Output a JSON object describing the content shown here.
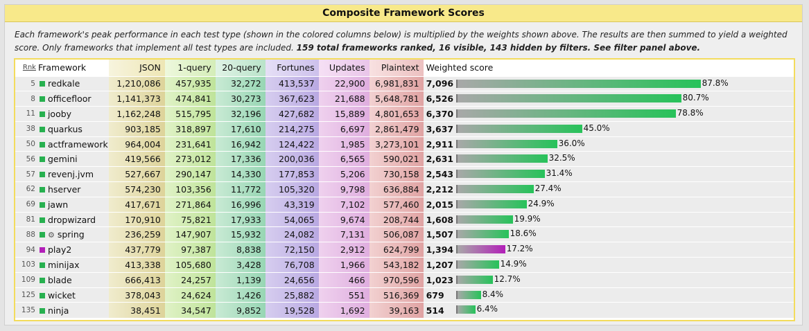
{
  "title": "Composite Framework Scores",
  "description": {
    "italic": "Each framework's peak performance in each test type (shown in the colored columns below) is multiplied by the weights shown above. The results are then summed to yield a weighted score. Only frameworks that implement all test types are included.",
    "bold": "159 total frameworks ranked, 16 visible, 143 hidden by filters. See filter panel above."
  },
  "columns": {
    "rank": "Rnk",
    "framework": "Framework",
    "json": "JSON",
    "q1": "1-query",
    "q20": "20-query",
    "fortunes": "Fortunes",
    "updates": "Updates",
    "plaintext": "Plaintext",
    "weighted": "Weighted score"
  },
  "colors": {
    "bar_green": "#27c25a",
    "bar_purple": "#b21fb8",
    "bar_grey": "#9a9a9a",
    "header": "#f8e98a",
    "border": "#f3dc5c"
  },
  "rows": [
    {
      "rank": "5",
      "name": "redkale",
      "icon": "square",
      "marker": "#27b04f",
      "json": "1,210,086",
      "q1": "457,935",
      "q20": "32,272",
      "fortunes": "413,537",
      "updates": "22,900",
      "plaintext": "6,981,831",
      "score": "7,096",
      "pct": "87.8%",
      "fraction": 0.878,
      "bar": "green"
    },
    {
      "rank": "8",
      "name": "officefloor",
      "icon": "square",
      "marker": "#27b04f",
      "json": "1,141,373",
      "q1": "474,841",
      "q20": "30,273",
      "fortunes": "367,623",
      "updates": "21,688",
      "plaintext": "5,648,781",
      "score": "6,526",
      "pct": "80.7%",
      "fraction": 0.807,
      "bar": "green"
    },
    {
      "rank": "11",
      "name": "jooby",
      "icon": "square",
      "marker": "#27b04f",
      "json": "1,162,248",
      "q1": "515,795",
      "q20": "32,196",
      "fortunes": "427,682",
      "updates": "15,889",
      "plaintext": "4,801,653",
      "score": "6,370",
      "pct": "78.8%",
      "fraction": 0.788,
      "bar": "green"
    },
    {
      "rank": "38",
      "name": "quarkus",
      "icon": "square",
      "marker": "#27b04f",
      "json": "903,185",
      "q1": "318,897",
      "q20": "17,610",
      "fortunes": "214,275",
      "updates": "6,697",
      "plaintext": "2,861,479",
      "score": "3,637",
      "pct": "45.0%",
      "fraction": 0.45,
      "bar": "green"
    },
    {
      "rank": "50",
      "name": "actframework",
      "icon": "square",
      "marker": "#27b04f",
      "json": "964,004",
      "q1": "231,641",
      "q20": "16,942",
      "fortunes": "124,422",
      "updates": "1,985",
      "plaintext": "3,273,101",
      "score": "2,911",
      "pct": "36.0%",
      "fraction": 0.36,
      "bar": "green"
    },
    {
      "rank": "56",
      "name": "gemini",
      "icon": "square",
      "marker": "#27b04f",
      "json": "419,566",
      "q1": "273,012",
      "q20": "17,336",
      "fortunes": "200,036",
      "updates": "6,565",
      "plaintext": "590,021",
      "score": "2,631",
      "pct": "32.5%",
      "fraction": 0.325,
      "bar": "green"
    },
    {
      "rank": "57",
      "name": "revenj.jvm",
      "icon": "square",
      "marker": "#27b04f",
      "json": "527,667",
      "q1": "290,147",
      "q20": "14,330",
      "fortunes": "177,853",
      "updates": "5,206",
      "plaintext": "730,158",
      "score": "2,543",
      "pct": "31.4%",
      "fraction": 0.314,
      "bar": "green"
    },
    {
      "rank": "62",
      "name": "hserver",
      "icon": "square",
      "marker": "#27b04f",
      "json": "574,230",
      "q1": "103,356",
      "q20": "11,772",
      "fortunes": "105,320",
      "updates": "9,798",
      "plaintext": "636,884",
      "score": "2,212",
      "pct": "27.4%",
      "fraction": 0.274,
      "bar": "green"
    },
    {
      "rank": "69",
      "name": "jawn",
      "icon": "square",
      "marker": "#27b04f",
      "json": "417,671",
      "q1": "271,864",
      "q20": "16,996",
      "fortunes": "43,319",
      "updates": "7,102",
      "plaintext": "577,460",
      "score": "2,015",
      "pct": "24.9%",
      "fraction": 0.249,
      "bar": "green"
    },
    {
      "rank": "81",
      "name": "dropwizard",
      "icon": "square",
      "marker": "#27b04f",
      "json": "170,910",
      "q1": "75,821",
      "q20": "17,933",
      "fortunes": "54,065",
      "updates": "9,674",
      "plaintext": "208,744",
      "score": "1,608",
      "pct": "19.9%",
      "fraction": 0.199,
      "bar": "green"
    },
    {
      "rank": "88",
      "name": "spring",
      "icon": "gear",
      "marker": "#27b04f",
      "json": "236,259",
      "q1": "147,907",
      "q20": "15,932",
      "fortunes": "24,082",
      "updates": "7,131",
      "plaintext": "506,087",
      "score": "1,507",
      "pct": "18.6%",
      "fraction": 0.186,
      "bar": "green"
    },
    {
      "rank": "94",
      "name": "play2",
      "icon": "square",
      "marker": "#b21fb8",
      "json": "437,779",
      "q1": "97,387",
      "q20": "8,838",
      "fortunes": "72,150",
      "updates": "2,912",
      "plaintext": "624,799",
      "score": "1,394",
      "pct": "17.2%",
      "fraction": 0.172,
      "bar": "purple"
    },
    {
      "rank": "103",
      "name": "minijax",
      "icon": "square",
      "marker": "#27b04f",
      "json": "413,338",
      "q1": "105,680",
      "q20": "3,428",
      "fortunes": "76,708",
      "updates": "1,966",
      "plaintext": "543,182",
      "score": "1,207",
      "pct": "14.9%",
      "fraction": 0.149,
      "bar": "green"
    },
    {
      "rank": "109",
      "name": "blade",
      "icon": "square",
      "marker": "#27b04f",
      "json": "666,413",
      "q1": "24,257",
      "q20": "1,139",
      "fortunes": "24,656",
      "updates": "466",
      "plaintext": "970,596",
      "score": "1,023",
      "pct": "12.7%",
      "fraction": 0.127,
      "bar": "green"
    },
    {
      "rank": "125",
      "name": "wicket",
      "icon": "square",
      "marker": "#27b04f",
      "json": "378,043",
      "q1": "24,624",
      "q20": "1,426",
      "fortunes": "25,882",
      "updates": "551",
      "plaintext": "516,369",
      "score": "679",
      "pct": "8.4%",
      "fraction": 0.084,
      "bar": "green"
    },
    {
      "rank": "135",
      "name": "ninja",
      "icon": "square",
      "marker": "#27b04f",
      "json": "38,451",
      "q1": "34,547",
      "q20": "9,852",
      "fortunes": "19,528",
      "updates": "1,692",
      "plaintext": "39,163",
      "score": "514",
      "pct": "6.4%",
      "fraction": 0.064,
      "bar": "green"
    }
  ]
}
